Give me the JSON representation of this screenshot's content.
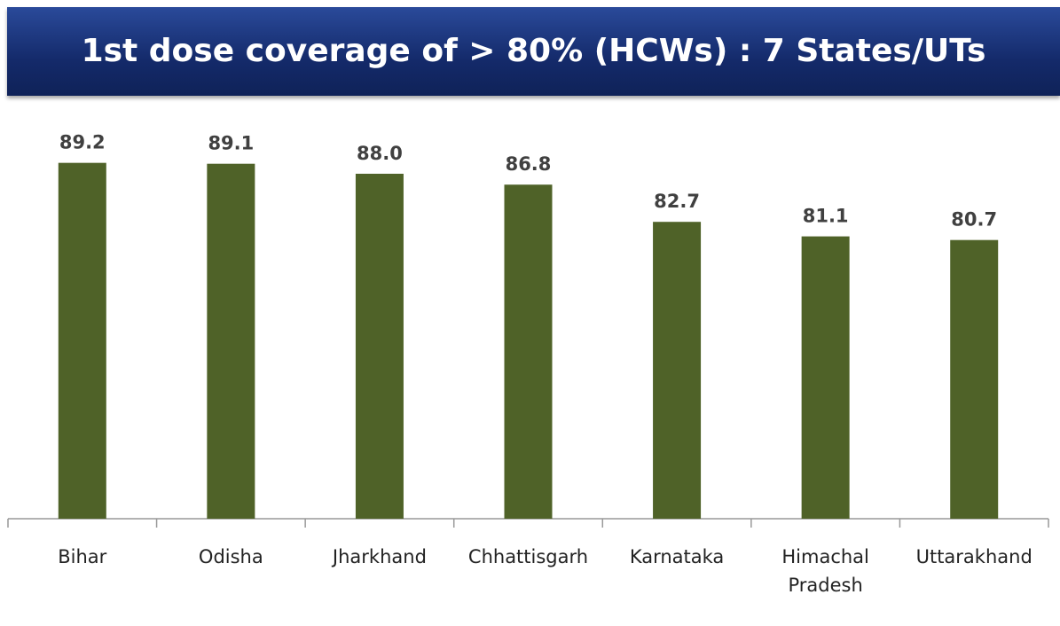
{
  "chart_data": {
    "type": "bar",
    "title": "1st dose coverage of > 80% (HCWs) : 7 States/UTs",
    "categories": [
      "Bihar",
      "Odisha",
      "Jharkhand",
      "Chhattisgarh",
      "Karnataka",
      "Himachal Pradesh",
      "Uttarakhand"
    ],
    "values": [
      89.2,
      89.1,
      88.0,
      86.8,
      82.7,
      81.1,
      80.7
    ],
    "value_labels": [
      "89.2",
      "89.1",
      "88.0",
      "86.8",
      "82.7",
      "81.1",
      "80.7"
    ],
    "color": "#4f6228",
    "ylim": [
      50,
      92
    ]
  }
}
